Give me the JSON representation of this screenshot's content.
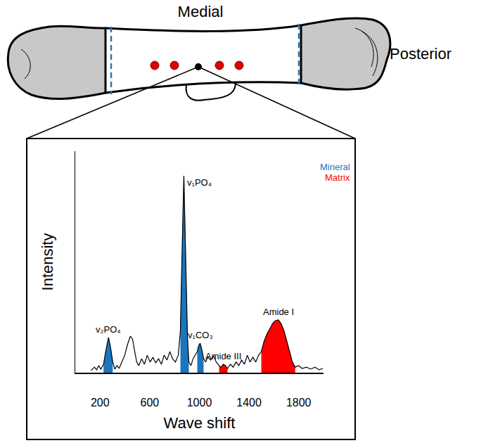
{
  "figure": {
    "labels": {
      "top": "Medial",
      "right": "Posterior"
    }
  },
  "chart_data": {
    "type": "line",
    "xlabel": "Wave shift",
    "ylabel": "Intensity",
    "xlim": [
      0,
      2000
    ],
    "xticks": [
      200,
      600,
      1000,
      1400,
      1800
    ],
    "ylim": [
      0,
      100
    ],
    "yticks": [],
    "tick_labels": "x",
    "grid": false,
    "color": "#000000",
    "x": [
      126,
      155,
      172,
      189,
      206,
      228,
      245,
      268,
      285,
      302,
      319,
      336,
      353,
      376,
      399,
      421,
      444,
      461,
      478,
      495,
      512,
      535,
      557,
      580,
      603,
      626,
      648,
      671,
      694,
      716,
      739,
      762,
      784,
      807,
      830,
      847,
      858,
      870,
      875,
      881,
      892,
      904,
      915,
      932,
      949,
      966,
      983,
      994,
      1006,
      1017,
      1034,
      1051,
      1068,
      1091,
      1114,
      1136,
      1159,
      1176,
      1193,
      1210,
      1227,
      1250,
      1272,
      1295,
      1318,
      1340,
      1363,
      1386,
      1408,
      1431,
      1454,
      1477,
      1499,
      1522,
      1545,
      1567,
      1590,
      1613,
      1636,
      1658,
      1681,
      1704,
      1726,
      1749,
      1772,
      1800,
      1828,
      1862,
      1897,
      1931,
      1965,
      1995
    ],
    "values": [
      1.0,
      2.5,
      1.3,
      3.2,
      1.6,
      3.8,
      9.5,
      15.9,
      11.1,
      4.8,
      1.6,
      3.2,
      1.9,
      4.8,
      7.9,
      12.7,
      16.5,
      15.2,
      9.5,
      4.8,
      3.2,
      6.3,
      3.8,
      7.9,
      4.8,
      7.0,
      4.4,
      6.3,
      3.8,
      7.9,
      5.7,
      9.5,
      6.3,
      4.8,
      7.9,
      19.0,
      47.6,
      76.2,
      88.9,
      73.0,
      41.3,
      15.9,
      4.8,
      3.2,
      6.3,
      7.9,
      9.5,
      12.1,
      13.3,
      11.1,
      6.3,
      4.8,
      7.0,
      5.7,
      7.6,
      4.8,
      3.2,
      2.5,
      3.8,
      3.2,
      1.9,
      3.8,
      2.5,
      4.8,
      3.2,
      5.7,
      3.8,
      7.9,
      4.8,
      7.0,
      4.8,
      7.9,
      9.5,
      14.3,
      17.5,
      19.7,
      22.2,
      23.5,
      23.8,
      22.2,
      19.0,
      14.3,
      9.5,
      4.8,
      2.5,
      3.2,
      1.9,
      2.5,
      1.6,
      2.5,
      1.3,
      1.9
    ],
    "groups": [
      {
        "name": "Mineral",
        "color": "#1b75bc"
      },
      {
        "name": "Matrix",
        "color": "#ff0000"
      }
    ],
    "regions": [
      {
        "label": "v₂PO₄",
        "group": "Mineral",
        "range": [
          228,
          302
        ]
      },
      {
        "label": "v₁PO₄",
        "group": "Mineral",
        "range": [
          847,
          915
        ]
      },
      {
        "label": "v₁CO₃",
        "group": "Mineral",
        "range": [
          983,
          1034
        ]
      },
      {
        "label": "Amide III",
        "group": "Matrix",
        "range": [
          1159,
          1227
        ]
      },
      {
        "label": "Amide I",
        "group": "Matrix",
        "range": [
          1499,
          1772
        ]
      }
    ]
  }
}
